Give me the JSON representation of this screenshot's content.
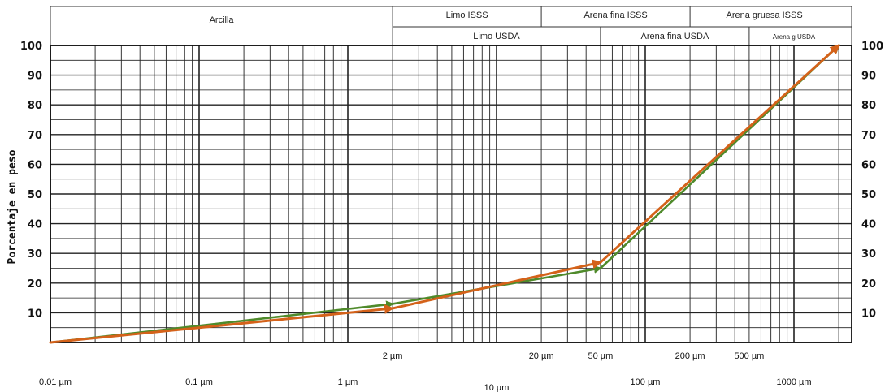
{
  "chart_data": {
    "type": "line",
    "title": "",
    "ylabel": "Porcentaje en peso",
    "xlabel": "",
    "xscale": "log",
    "xlim_um": [
      0.01,
      2000
    ],
    "ylim": [
      0,
      100
    ],
    "grid": true,
    "y_ticks_left": [
      "100",
      "90",
      "80",
      "70",
      "60",
      "50",
      "40",
      "30",
      "20",
      "10"
    ],
    "y_ticks_right": [
      "100",
      "90",
      "80",
      "70",
      "60",
      "50",
      "40",
      "30",
      "20",
      "10"
    ],
    "x_ticks_bottom": [
      {
        "label": "0.01 µm",
        "value": 0.01
      },
      {
        "label": "0.1 µm",
        "value": 0.1
      },
      {
        "label": "1 µm",
        "value": 1
      },
      {
        "label": "10 µm",
        "value": 10
      },
      {
        "label": "100 µm",
        "value": 100
      },
      {
        "label": "1000 µm",
        "value": 1000
      }
    ],
    "x_ticks_upper": [
      {
        "label": "2 µm",
        "value": 2
      },
      {
        "label": "20 µm",
        "value": 20
      },
      {
        "label": "50 µm",
        "value": 50
      },
      {
        "label": "200 µm",
        "value": 200
      },
      {
        "label": "500 µm",
        "value": 500
      }
    ],
    "header_row1": [
      {
        "label": "Arcilla",
        "from": 0.01,
        "to": 2
      },
      {
        "label": "Limo ISSS",
        "from": 2,
        "to": 20
      },
      {
        "label": "Arena fina ISSS",
        "from": 20,
        "to": 200
      },
      {
        "label": "Arena gruesa ISSS",
        "from": 200,
        "to": 2000
      }
    ],
    "header_row2": [
      {
        "label": "Limo USDA",
        "from": 2,
        "to": 50
      },
      {
        "label": "Arena fina USDA",
        "from": 50,
        "to": 500
      },
      {
        "label": "Arena g USDA",
        "from": 500,
        "to": 2000
      }
    ],
    "series": [
      {
        "color": "#4f8a2b",
        "points": [
          [
            0.01,
            0
          ],
          [
            2,
            13
          ],
          [
            50,
            25
          ],
          [
            2000,
            100
          ]
        ]
      },
      {
        "color": "#d4621a",
        "points": [
          [
            0.01,
            0
          ],
          [
            2,
            11.5
          ],
          [
            50,
            27
          ],
          [
            2000,
            100
          ]
        ]
      }
    ]
  }
}
